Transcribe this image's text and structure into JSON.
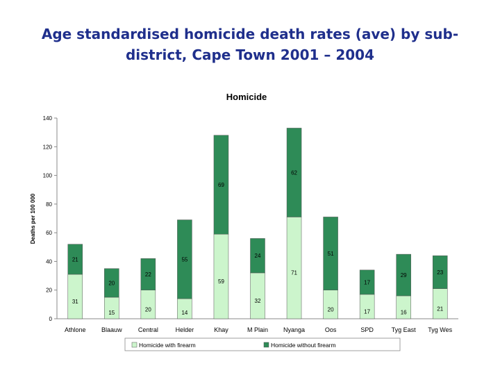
{
  "slide": {
    "title_line1": "Age standardised homicide death rates (ave) by sub-",
    "title_line2": "district, Cape Town 2001 – 2004"
  },
  "chart_data": {
    "type": "bar",
    "stacked": true,
    "title": "Homicide",
    "xlabel": "",
    "ylabel": "Deaths per 100 000",
    "ylim": [
      0,
      140
    ],
    "yticks": [
      0,
      20,
      40,
      60,
      80,
      100,
      120,
      140
    ],
    "grid": false,
    "legend_position": "bottom",
    "categories": [
      "Athlone",
      "Blaauw",
      "Central",
      "Helder",
      "Khay",
      "M Plain",
      "Nyanga",
      "Oos",
      "SPD",
      "Tyg East",
      "Tyg Wes"
    ],
    "series": [
      {
        "name": "Homicide with firearm",
        "color": "#ccf5cc",
        "values": [
          31,
          15,
          20,
          14,
          59,
          32,
          71,
          20,
          17,
          16,
          21
        ]
      },
      {
        "name": "Homicide without firearm",
        "color": "#2e8b57",
        "values": [
          21,
          20,
          22,
          55,
          69,
          24,
          62,
          51,
          17,
          29,
          23
        ]
      }
    ]
  }
}
